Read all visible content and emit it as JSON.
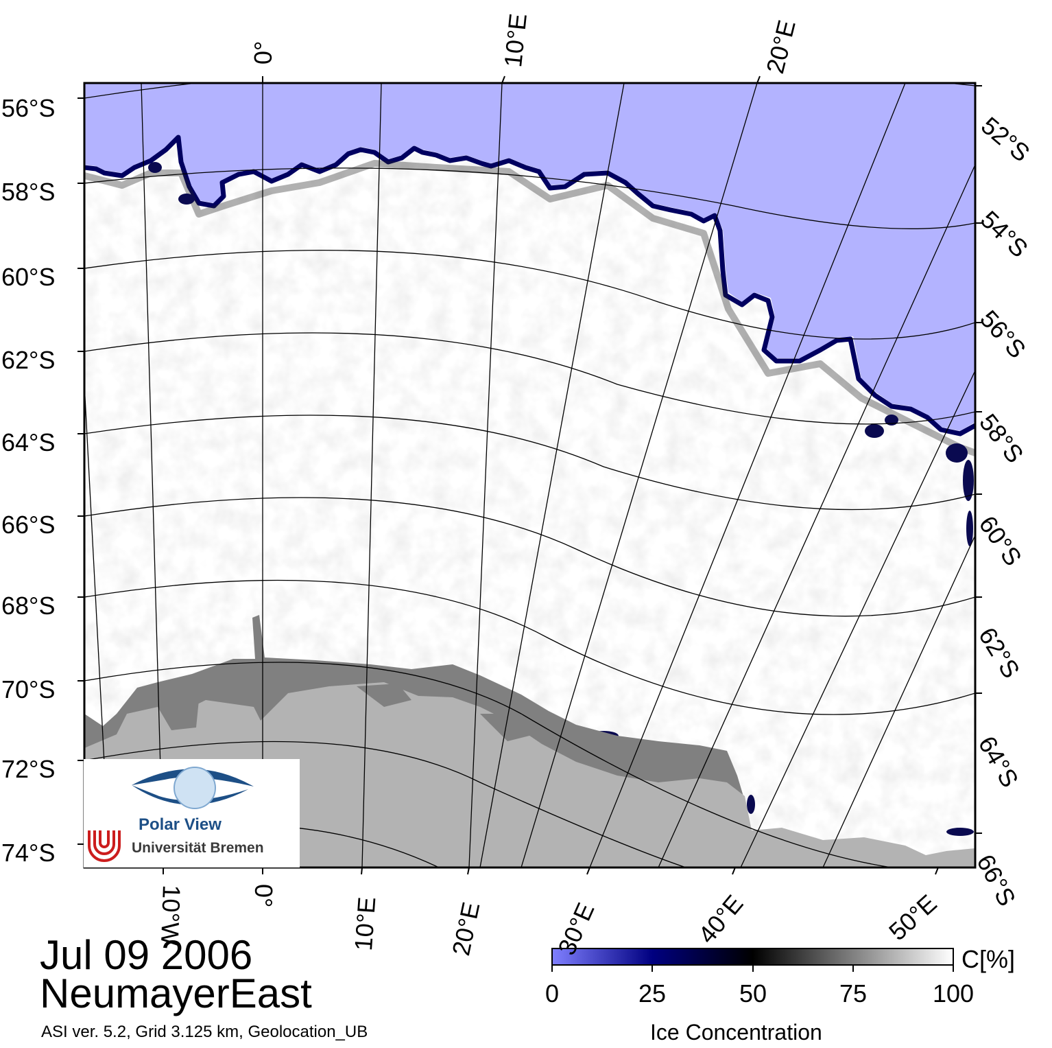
{
  "title": {
    "date": "Jul 09 2006",
    "region": "NeumayerEast"
  },
  "footnote": "ASI ver. 5.2,  Grid 3.125 km, Geolocation_UB",
  "map": {
    "projection": "polar stereographic",
    "land_color": "#b3b3b3",
    "ice_shelf_color": "#808080",
    "open_water_color": "#b3b3ff",
    "ice_color": "#ffffff",
    "graticule_color": "#000000"
  },
  "labels": {
    "lat_left": [
      "56°S",
      "58°S",
      "60°S",
      "62°S",
      "64°S",
      "66°S",
      "68°S",
      "70°S",
      "72°S",
      "74°S"
    ],
    "lat_right": [
      "52°S",
      "54°S",
      "56°S",
      "58°S",
      "60°S",
      "62°S",
      "64°S",
      "66°S"
    ],
    "lon_top": [
      "0°",
      "10°E",
      "20°E"
    ],
    "lon_bottom": [
      "10°W",
      "0°",
      "10°E",
      "20°E",
      "30°E",
      "40°E",
      "50°E"
    ]
  },
  "colorbar": {
    "title": "Ice Concentration",
    "unit": "C[%]",
    "ticks": [
      "0",
      "25",
      "50",
      "75",
      "100"
    ],
    "stops": [
      "#8080ff",
      "#000080",
      "#000000",
      "#808080",
      "#ffffff"
    ]
  },
  "logo": {
    "name": "Polar View",
    "institution": "Universität Bremen"
  }
}
